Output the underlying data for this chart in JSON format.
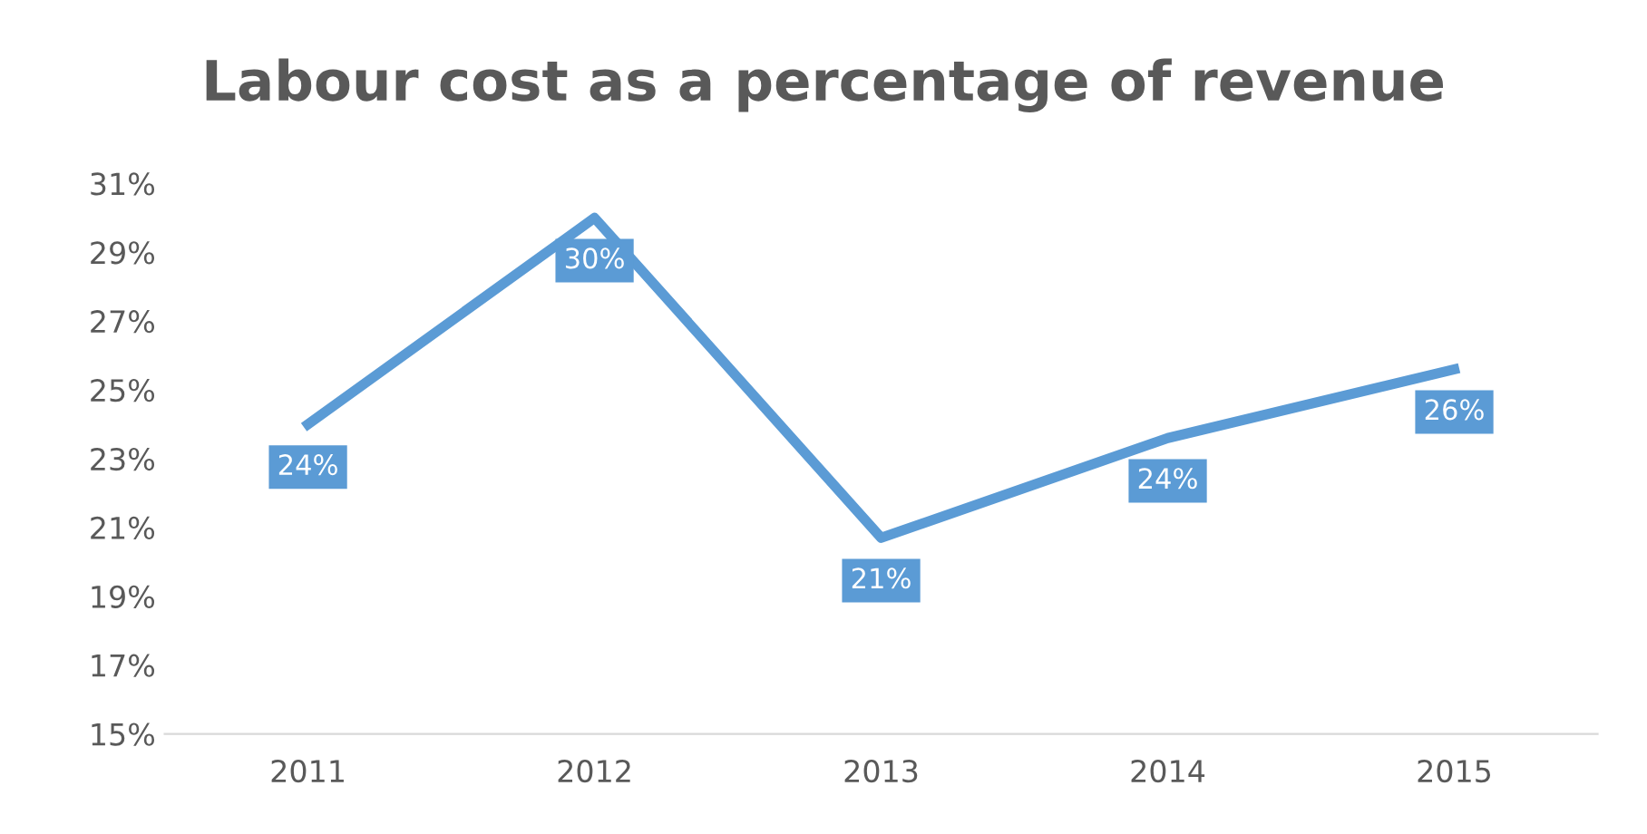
{
  "chart_data": {
    "type": "line",
    "title": "Labour cost as a percentage of revenue",
    "categories": [
      "2011",
      "2012",
      "2013",
      "2014",
      "2015"
    ],
    "series": [
      {
        "color": "#5b9bd5",
        "values": [
          24.0,
          30.0,
          20.7,
          23.6,
          25.6
        ],
        "value_labels": [
          "24%",
          "30%",
          "21%",
          "24%",
          "26%"
        ]
      }
    ],
    "ylim": [
      15,
      31
    ],
    "yticks": [
      {
        "value": 15,
        "label": "15%"
      },
      {
        "value": 17,
        "label": "17%"
      },
      {
        "value": 19,
        "label": "19%"
      },
      {
        "value": 21,
        "label": "21%"
      },
      {
        "value": 23,
        "label": "23%"
      },
      {
        "value": 25,
        "label": "25%"
      },
      {
        "value": 27,
        "label": "27%"
      },
      {
        "value": 29,
        "label": "29%"
      },
      {
        "value": 31,
        "label": "31%"
      }
    ],
    "grid": false,
    "line_style": "solid"
  }
}
